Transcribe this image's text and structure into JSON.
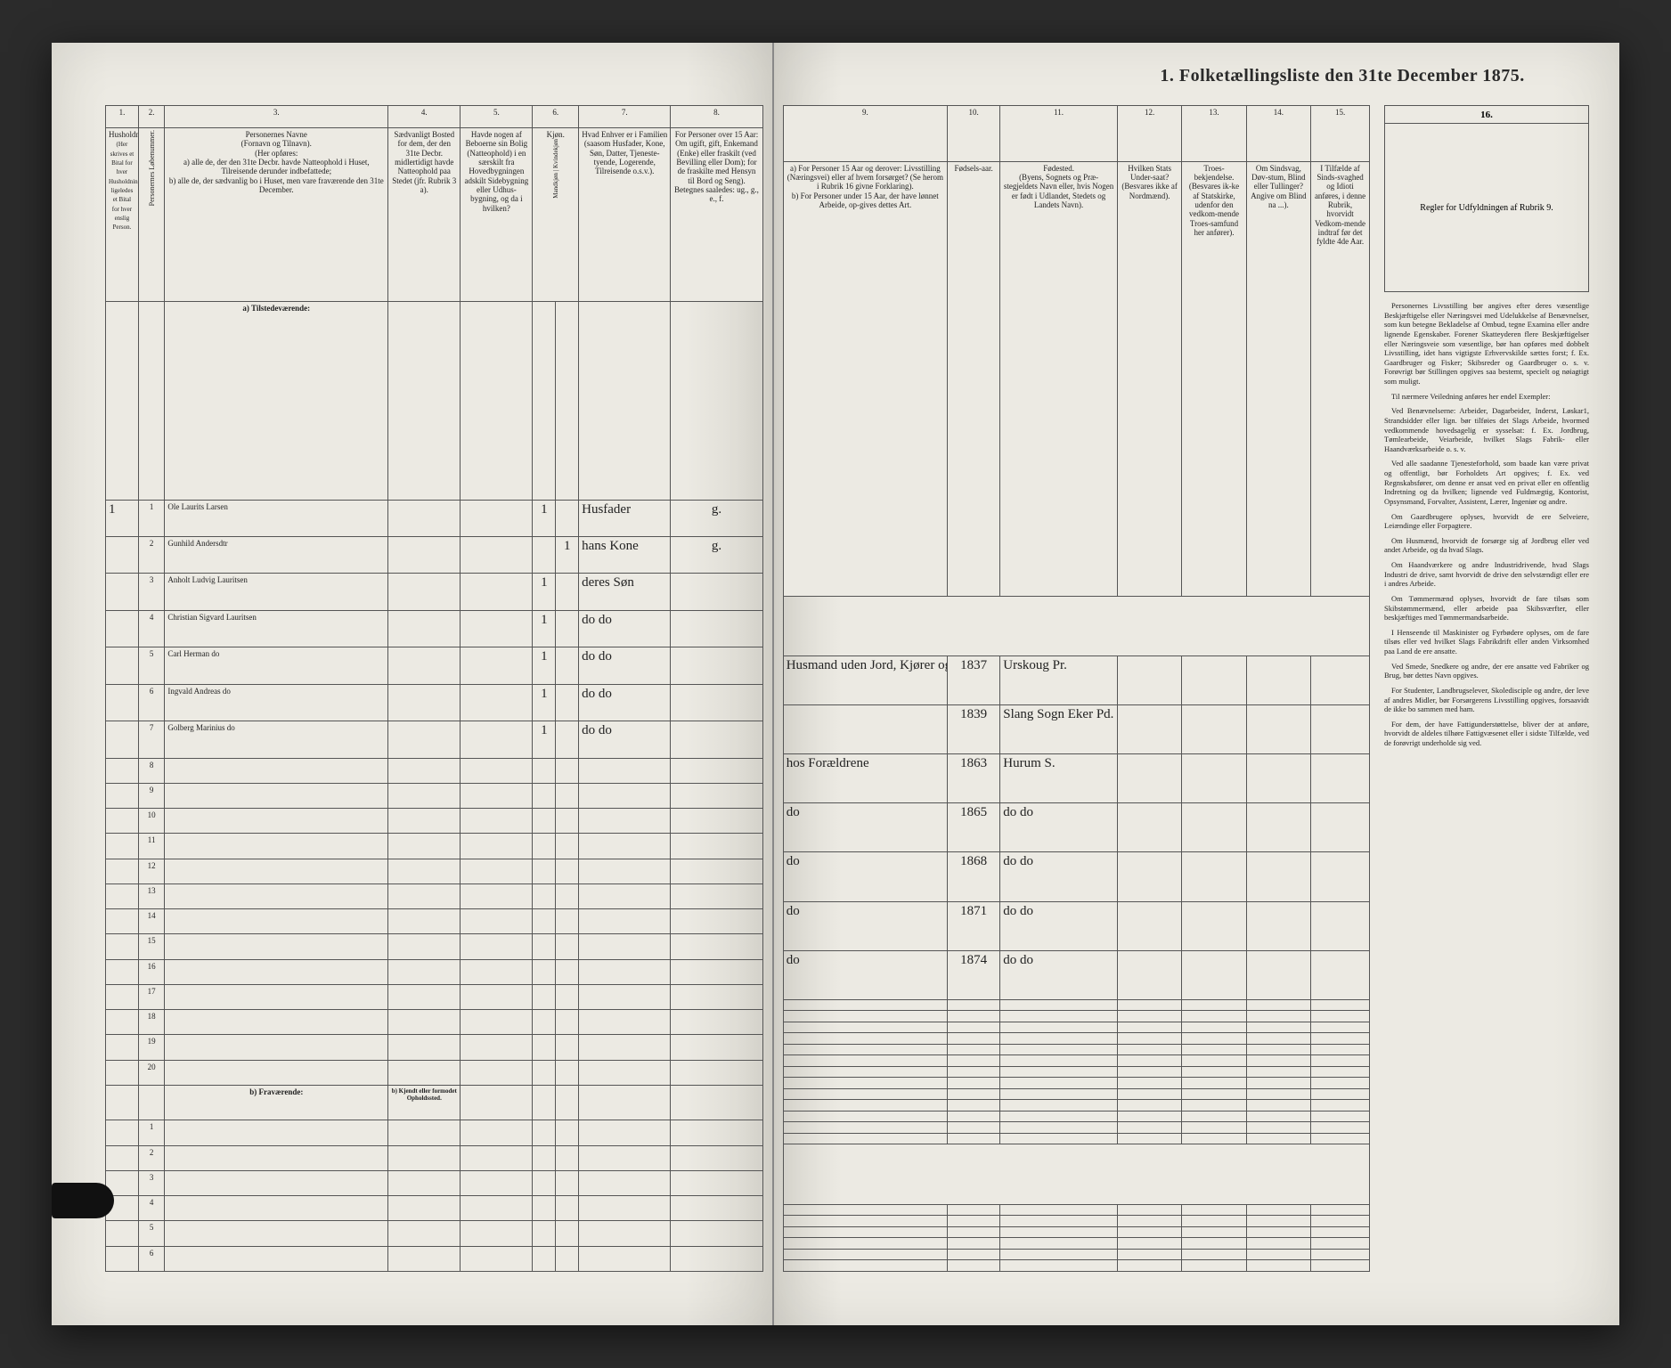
{
  "document": {
    "title": "1. Folketællingsliste den 31te December 1875.",
    "type": "census-ledger",
    "year": 1875,
    "background_color": "#eceae3",
    "ink_color": "#2a2a2a",
    "rule_color": "#555555"
  },
  "columns_left": [
    {
      "num": "1.",
      "label": "Husholdninger.",
      "sub": "(Her skrives et Bital for hver Husholdning; ligeledes et Bital for hver enslig Person."
    },
    {
      "num": "2.",
      "label": "Personernes Løbenummer."
    },
    {
      "num": "3.",
      "label": "Personernes Navne\n(Fornavn og Tilnavn).\n(Her opføres:\na) alle de, der den 31te Decbr. havde Natteophold i Huset, Tilreisende derunder indbefattede;\nb) alle de, der sædvanlig bo i Huset, men vare fraværende den 31te December."
    },
    {
      "num": "4.",
      "label": "Sædvanligt Bosted for dem, der den 31te Decbr. midlertidigt havde Natteophold paa Stedet (jfr. Rubrik 3 a)."
    },
    {
      "num": "5.",
      "label": "Havde nogen af Beboerne sin Bolig (Natteophold) i en særskilt fra Hovedbygningen adskilt Sidebygning eller Udhus-bygning, og da i hvilken?"
    },
    {
      "num": "6.",
      "label": "Kjøn.",
      "sub": "Mandkjøn | Kvindekjøn"
    },
    {
      "num": "7.",
      "label": "Hvad Enhver er i Familien\n(saasom Husfader, Kone, Søn, Datter, Tjeneste-tyende, Logerende, Tilreisende o.s.v.)."
    },
    {
      "num": "8.",
      "label": "For Personer over 15 Aar: Om ugift, gift, Enkemand (Enke) eller fraskilt (ved Bevilling eller Dom); for de fraskilte med Hensyn til Bord og Seng).\nBetegnes saaledes: ug., g., e., f."
    }
  ],
  "columns_right": [
    {
      "num": "9.",
      "label": "a) For Personer 15 Aar og derover: Livsstilling (Næringsvei) eller af hvem forsørget? (Se herom i Rubrik 16 givne Forklaring).\nb) For Personer under 15 Aar, der have lønnet Arbeide, op-gives dettes Art."
    },
    {
      "num": "10.",
      "label": "Fødsels-aar."
    },
    {
      "num": "11.",
      "label": "Fødested.\n(Byens, Sognets og Præ-stegjeldets Navn eller, hvis Nogen er født i Udlandet, Stedets og Landets Navn)."
    },
    {
      "num": "12.",
      "label": "Hvilken Stats Under-saat?\n(Besvares ikke af Nordmænd)."
    },
    {
      "num": "13.",
      "label": "Troes-bekjendelse.\n(Besvares ik-ke af Statskirke, udenfor den vedkom-mende Troes-samfund her anfører)."
    },
    {
      "num": "14.",
      "label": "Om Sindsvag, Døv-stum, Blind eller Tullinger?\nAngive om Blind na ...)."
    },
    {
      "num": "15.",
      "label": "I Tilfælde af Sinds-svaghed og Idioti anføres, i denne Rubrik, hvorvidt Vedkom-mende indtraf før det fyldte 4de Aar."
    }
  ],
  "column16": {
    "num": "16.",
    "label": "Regler for Udfyldningen\naf\nRubrik 9."
  },
  "sections": {
    "present": "a) Tilstedeværende:",
    "absent": "b) Fraværende:",
    "absent_note": "b) Kjendt eller formodet Opholdssted."
  },
  "rows_present": [
    {
      "n": "1",
      "name": "Ole Laurits Larsen",
      "c4": "",
      "c5": "",
      "sex_m": "1",
      "sex_f": "",
      "c7": "Husfader",
      "c8": "g.",
      "c9": "Husmand uden Jord, Kjører og Hugst",
      "c10": "1837",
      "c11": "Urskoug Pr.",
      "c12": "",
      "c13": "",
      "c14": "",
      "c15": ""
    },
    {
      "n": "2",
      "name": "Gunhild Andersdtr",
      "c4": "",
      "c5": "",
      "sex_m": "",
      "sex_f": "1",
      "c7": "hans Kone",
      "c8": "g.",
      "c9": "",
      "c10": "1839",
      "c11": "Slang Sogn Eker Pd.",
      "c12": "",
      "c13": "",
      "c14": "",
      "c15": ""
    },
    {
      "n": "3",
      "name": "Anholt Ludvig Lauritsen",
      "c4": "",
      "c5": "",
      "sex_m": "1",
      "sex_f": "",
      "c7": "deres Søn",
      "c8": "",
      "c9": "hos Forældrene",
      "c10": "1863",
      "c11": "Hurum S.",
      "c12": "",
      "c13": "",
      "c14": "",
      "c15": ""
    },
    {
      "n": "4",
      "name": "Christian Sigvard Lauritsen",
      "c4": "",
      "c5": "",
      "sex_m": "1",
      "sex_f": "",
      "c7": "do do",
      "c8": "",
      "c9": "do",
      "c10": "1865",
      "c11": "do do",
      "c12": "",
      "c13": "",
      "c14": "",
      "c15": ""
    },
    {
      "n": "5",
      "name": "Carl Herman      do",
      "c4": "",
      "c5": "",
      "sex_m": "1",
      "sex_f": "",
      "c7": "do do",
      "c8": "",
      "c9": "do",
      "c10": "1868",
      "c11": "do do",
      "c12": "",
      "c13": "",
      "c14": "",
      "c15": ""
    },
    {
      "n": "6",
      "name": "Ingvald Andreas   do",
      "c4": "",
      "c5": "",
      "sex_m": "1",
      "sex_f": "",
      "c7": "do do",
      "c8": "",
      "c9": "do",
      "c10": "1871",
      "c11": "do do",
      "c12": "",
      "c13": "",
      "c14": "",
      "c15": ""
    },
    {
      "n": "7",
      "name": "Golberg Marinius  do",
      "c4": "",
      "c5": "",
      "sex_m": "1",
      "sex_f": "",
      "c7": "do do",
      "c8": "",
      "c9": "do",
      "c10": "1874",
      "c11": "do do",
      "c12": "",
      "c13": "",
      "c14": "",
      "c15": ""
    }
  ],
  "blank_present_rows": [
    "8",
    "9",
    "10",
    "11",
    "12",
    "13",
    "14",
    "15",
    "16",
    "17",
    "18",
    "19",
    "20"
  ],
  "blank_absent_rows": [
    "1",
    "2",
    "3",
    "4",
    "5",
    "6"
  ],
  "instructions_text": [
    "Personernes Livsstilling bør angives efter deres væsentlige Beskjæftigelse eller Næringsvei med Udelukkelse af Benævnelser, som kun betegne Bekladelse af Ombud, tegne Examina eller andre lignende Egenskaber. Forener Skatteyderen flere Beskjæftigelser eller Næringsveie som væsentlige, bør han opføres med dobbelt Livsstilling, idet hans vigtigste Erhvervskilde sættes forst; f. Ex. Gaardbruger og Fisker; Skibsreder og Gaardbruger o. s. v. Forøvrigt bør Stillingen opgives saa bestemt, specielt og nøiagtigt som muligt.",
    "Til nærmere Veiledning anføres her endel Exempler:",
    "Ved Benævnelserne: Arbeider, Dagarbeider, Inderst, Løskar1, Strandsidder eller lign. bør tilføies det Slags Arbeide, hvormed vedkommende hovedsagelig er sysselsat: f. Ex. Jordbrug, Tømlearbeide, Veiarbeide, hvilket Slags Fabrik- eller Haandværksarbeide o. s. v.",
    "Ved alle saadanne Tjenesteforhold, som baade kan være privat og offentligt, bør Forholdets Art opgives; f. Ex. ved Regnskabsfører, om denne er ansat ved en privat eller en offentlig Indretning og da hvilken; lignende ved Fuldmægtig, Kontorist, Opsynsmand, Forvalter, Assistent, Lærer, Ingeniør og andre.",
    "Om Gaardbrugere oplyses, hvorvidt de ere Selveiere, Leiændinge eller Forpagtere.",
    "Om Husmænd, hvorvidt de forsørge sig af Jordbrug eller ved andet Arbeide, og da hvad Slags.",
    "Om Haandværkere og andre Industridrivende, hvad Slags Industri de drive, samt hvorvidt de drive den selvstændigt eller ere i andres Arbeide.",
    "Om Tømmermænd oplyses, hvorvidt de fare tilsøs som Skibstømmermænd, eller arbeide paa Skibsværfter, eller beskjæftiges med Tømmermandsarbeide.",
    "I Henseende til Maskinister og Fyrbødere oplyses, om de fare tilsøs eller ved hvilket Slags Fabrikdrift eller anden Virksomhed paa Land de ere ansatte.",
    "Ved Smede, Snedkere og andre, der ere ansatte ved Fabriker og Brug, bør dettes Navn opgives.",
    "For Studenter, Landbrugselever, Skoledisciple og andre, der leve af andres Midler, bør Forsørgerens Livsstilling opgives, forsaavidt de ikke bo sammen med ham.",
    "For dem, der have Fattigunderstøttelse, bliver der at anføre, hvorvidt de aldeles tilhøre Fattigvæsenet eller i sidste Tilfælde, ved de forøvrigt underholde sig ved."
  ]
}
